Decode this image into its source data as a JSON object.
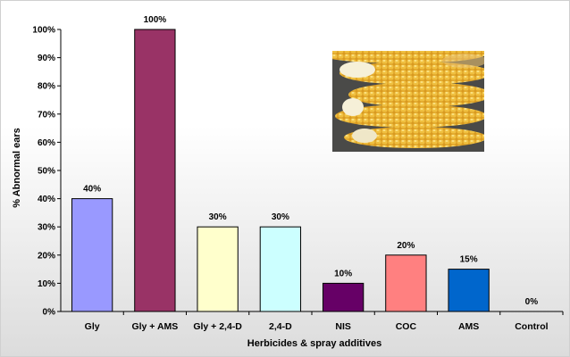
{
  "chart_data": {
    "type": "bar",
    "title": "",
    "xlabel": "Herbicides & spray additives",
    "ylabel": "% Abnormal ears",
    "categories": [
      "Gly",
      "Gly + AMS",
      "Gly + 2,4-D",
      "2,4-D",
      "NIS",
      "COC",
      "AMS",
      "Control"
    ],
    "values": [
      40,
      100,
      30,
      30,
      10,
      20,
      15,
      0
    ],
    "data_labels": [
      "40%",
      "100%",
      "30%",
      "30%",
      "10%",
      "20%",
      "15%",
      "0%"
    ],
    "colors": [
      "#9999ff",
      "#993366",
      "#ffffcc",
      "#ccffff",
      "#660066",
      "#ff8080",
      "#0066cc",
      "#c0c0c0"
    ],
    "ylim": [
      0,
      100
    ],
    "ytick_step": 10,
    "ytick_labels": [
      "0%",
      "10%",
      "20%",
      "30%",
      "40%",
      "50%",
      "60%",
      "70%",
      "80%",
      "90%",
      "100%"
    ],
    "grid": false,
    "legend": "none"
  },
  "inset_photo": {
    "icon": "corn-ears-photo",
    "colors": {
      "kernel": "#e8b030",
      "kernel_light": "#f5d060",
      "background": "#4a4a48"
    }
  }
}
